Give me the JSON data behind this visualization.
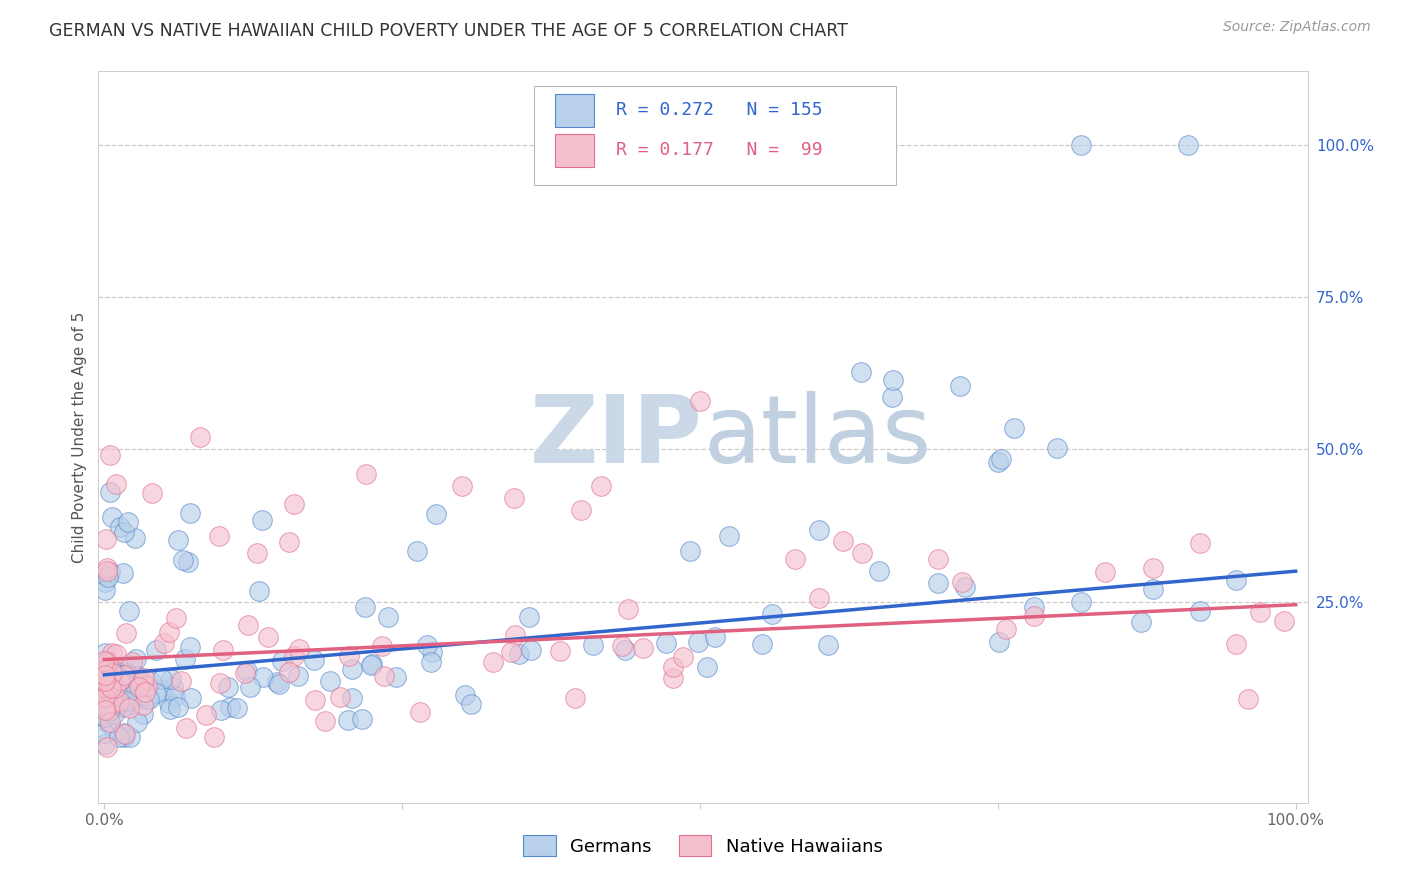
{
  "title": "GERMAN VS NATIVE HAWAIIAN CHILD POVERTY UNDER THE AGE OF 5 CORRELATION CHART",
  "source": "Source: ZipAtlas.com",
  "ylabel": "Child Poverty Under the Age of 5",
  "right_ytick_vals": [
    1.0,
    0.75,
    0.5,
    0.25
  ],
  "right_ytick_labels": [
    "100.0%",
    "75.0%",
    "50.0%",
    "25.0%"
  ],
  "legend_row1": "R = 0.272   N = 155",
  "legend_row2": "R = 0.177   N =  99",
  "legend_labels": [
    "Germans",
    "Native Hawaiians"
  ],
  "german_fill": "#b8d0ea",
  "german_edge": "#5588cc",
  "german_line": "#3366cc",
  "hawaiian_fill": "#f5c0ce",
  "hawaiian_edge": "#e07090",
  "hawaiian_line": "#e06080",
  "background_color": "#ffffff",
  "watermark_zip": "ZIP",
  "watermark_atlas": "atlas",
  "watermark_color_zip": "#d4e3f0",
  "watermark_color_atlas": "#c8d8e8",
  "grid_color": "#cccccc",
  "title_fontsize": 12.5,
  "source_fontsize": 10,
  "ylabel_fontsize": 11,
  "tick_fontsize": 11,
  "legend_fontsize": 13
}
